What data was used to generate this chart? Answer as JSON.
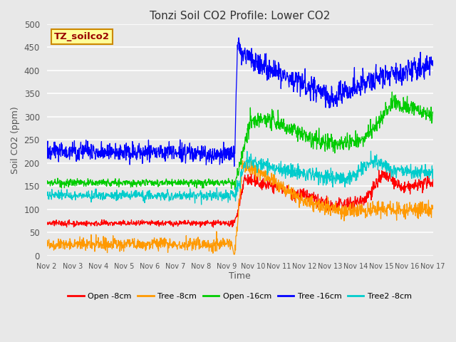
{
  "title": "Tonzi Soil CO2 Profile: Lower CO2",
  "xlabel": "Time",
  "ylabel": "Soil CO2 (ppm)",
  "ylim": [
    0,
    500
  ],
  "background_color": "#e8e8e8",
  "plot_bg_color": "#e8e8e8",
  "label_box": "TZ_soilco2",
  "label_box_color": "#ffff99",
  "label_box_edge": "#cc8800",
  "xtick_labels": [
    "Nov 2",
    "Nov 3",
    "Nov 4",
    "Nov 5",
    "Nov 6",
    "Nov 7",
    "Nov 8",
    "Nov 9",
    "Nov 10",
    "Nov 11",
    "Nov 12",
    "Nov 13",
    "Nov 14",
    "Nov 15",
    "Nov 16",
    "Nov 17"
  ],
  "legend_entries": [
    "Open -8cm",
    "Tree -8cm",
    "Open -16cm",
    "Tree -16cm",
    "Tree2 -8cm"
  ],
  "legend_colors": [
    "#ff0000",
    "#ff9900",
    "#00cc00",
    "#0000ff",
    "#00cccc"
  ],
  "series_colors": {
    "open8": "#ff0000",
    "tree8": "#ff9900",
    "open16": "#00cc00",
    "tree16": "#0000ff",
    "tree2_8": "#00cccc"
  },
  "seed": 42,
  "n_points": 1200,
  "transition_day": 7.3,
  "total_days": 15
}
